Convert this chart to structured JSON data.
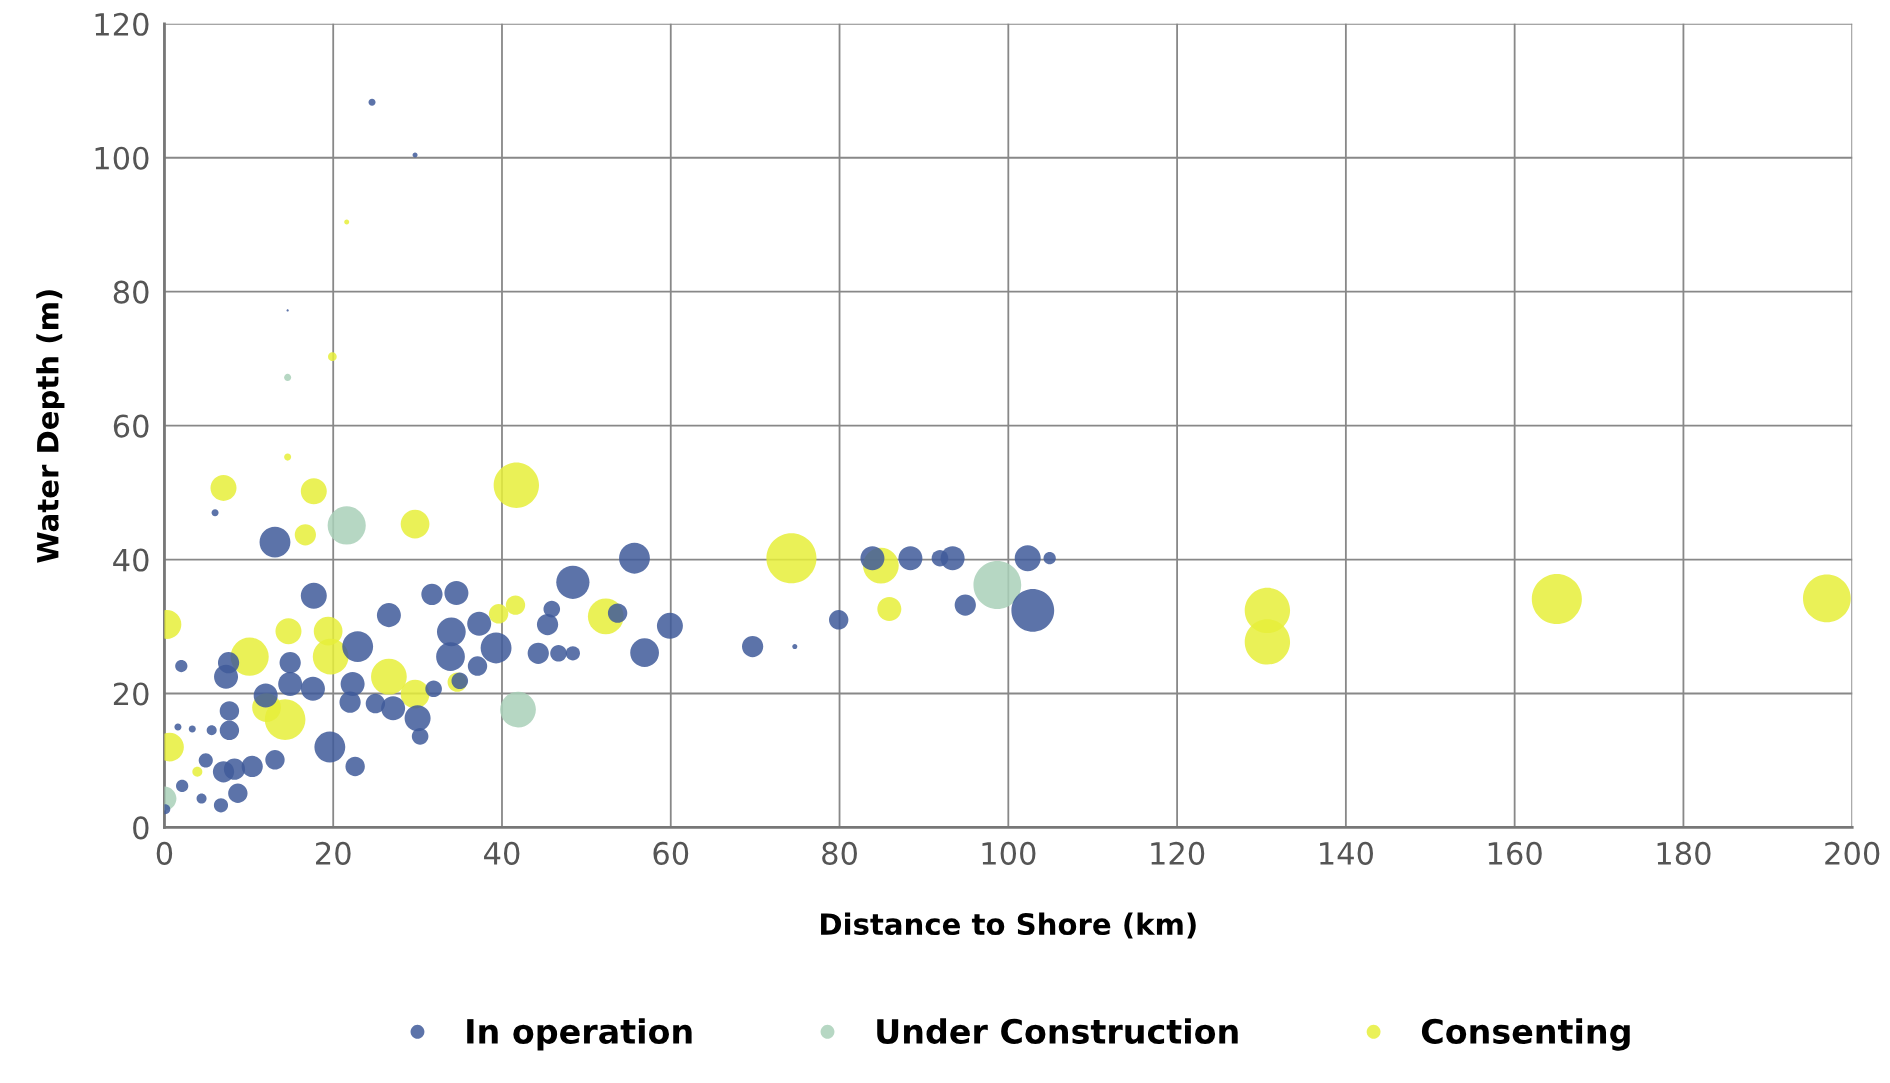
{
  "chart_data": {
    "type": "bubble",
    "xlabel": "Distance to Shore (km)",
    "ylabel": "Water Depth (m)",
    "xlim": [
      0,
      200
    ],
    "xticks": [
      0,
      20,
      40,
      60,
      80,
      100,
      120,
      140,
      160,
      180,
      200
    ],
    "ylim": [
      0,
      120
    ],
    "yticks": [
      0,
      20,
      40,
      60,
      80,
      100,
      120
    ],
    "grid": true,
    "legend": "bottom",
    "marker": "circle",
    "series": [
      {
        "name": "In operation",
        "color": "#3f5a9a",
        "x": [
          24.6,
          29.7,
          6,
          13.1,
          17.7,
          26.6,
          22.9,
          31.7,
          34.6,
          34,
          33.9,
          37.3,
          39.3,
          48.4,
          55.7,
          59.9,
          56.9,
          53.7,
          44.3,
          46.7,
          48.4,
          45.4,
          45.9,
          37.1,
          69.7,
          79.9,
          83.9,
          88.4,
          91.9,
          93.4,
          94.9,
          102.3,
          104.9,
          102.9,
          74.7,
          7.3,
          7.6,
          2,
          14.9,
          14.9,
          12,
          17.6,
          22.3,
          22,
          25,
          27.1,
          30,
          30.3,
          31.9,
          7.7,
          7.7,
          19.6,
          22.6,
          13.1,
          10.4,
          8.3,
          7,
          8.7,
          6.7,
          4.9,
          2.1,
          1.6,
          3.3,
          5.6,
          4.4,
          0.1,
          35,
          14.6
        ],
        "values": [
          108.3,
          100.4,
          47,
          42.6,
          34.6,
          31.7,
          27,
          34.8,
          35,
          29.2,
          25.5,
          30.4,
          26.8,
          36.6,
          40.2,
          30.1,
          26.1,
          32,
          26,
          26,
          26,
          30.3,
          32.6,
          24.1,
          27,
          31,
          40.2,
          40.2,
          40.2,
          40.2,
          33.2,
          40.2,
          40.2,
          32.4,
          27,
          22.5,
          24.6,
          24.1,
          24.6,
          21.4,
          19.7,
          20.7,
          21.4,
          18.7,
          18.5,
          17.8,
          16.3,
          13.6,
          20.7,
          17.4,
          14.5,
          12,
          9.1,
          10.1,
          9.1,
          8.7,
          8.3,
          5.1,
          3.3,
          10,
          6.2,
          15,
          14.7,
          14.5,
          4.3,
          2.7,
          21.9,
          77.2
        ],
        "sizes": [
          0.02,
          0.01,
          0.02,
          0.38,
          0.27,
          0.23,
          0.38,
          0.18,
          0.23,
          0.33,
          0.33,
          0.23,
          0.38,
          0.44,
          0.38,
          0.27,
          0.33,
          0.15,
          0.18,
          0.11,
          0.08,
          0.18,
          0.11,
          0.15,
          0.18,
          0.15,
          0.23,
          0.23,
          0.11,
          0.23,
          0.18,
          0.27,
          0.06,
          0.73,
          0.01,
          0.23,
          0.18,
          0.06,
          0.18,
          0.23,
          0.23,
          0.23,
          0.23,
          0.18,
          0.15,
          0.23,
          0.27,
          0.11,
          0.11,
          0.15,
          0.15,
          0.38,
          0.15,
          0.15,
          0.18,
          0.18,
          0.18,
          0.15,
          0.08,
          0.08,
          0.06,
          0.02,
          0.02,
          0.04,
          0.04,
          0.04,
          0.11,
          0.002
        ]
      },
      {
        "name": "Under Construction",
        "color": "#a9d0b8",
        "x": [
          21.6,
          98.7,
          41.9,
          14.6,
          0
        ],
        "values": [
          45.1,
          36.2,
          17.6,
          67.2,
          4.3
        ],
        "sizes": [
          0.58,
          0.91,
          0.51,
          0.02,
          0.23
        ]
      },
      {
        "name": "Consenting",
        "color": "#e6ef3a",
        "x": [
          41.7,
          74.3,
          84.9,
          85.9,
          130.7,
          130.7,
          165,
          197,
          7,
          17.7,
          16.7,
          29.7,
          0.3,
          14.7,
          19.4,
          19.7,
          10.1,
          14.3,
          12.1,
          26.6,
          29.7,
          34.7,
          39.6,
          41.6,
          52.3,
          0.6,
          3.9,
          19.9,
          21.6,
          14.6
        ],
        "values": [
          51.1,
          40.2,
          39.1,
          32.6,
          32.4,
          27.7,
          34.1,
          34.2,
          50.7,
          50.2,
          43.7,
          45.3,
          30.3,
          29.3,
          29.3,
          25.5,
          25.5,
          16.1,
          17.9,
          22.5,
          19.9,
          21.7,
          31.9,
          33.2,
          31.5,
          12,
          8.3,
          70.3,
          90.4,
          55.3
        ],
        "sizes": [
          0.82,
          1,
          0.51,
          0.23,
          0.82,
          0.82,
          1,
          0.91,
          0.27,
          0.27,
          0.18,
          0.33,
          0.33,
          0.27,
          0.33,
          0.51,
          0.58,
          0.66,
          0.33,
          0.51,
          0.33,
          0.15,
          0.15,
          0.15,
          0.51,
          0.33,
          0.04,
          0.03,
          0.01,
          0.02
        ]
      }
    ]
  }
}
